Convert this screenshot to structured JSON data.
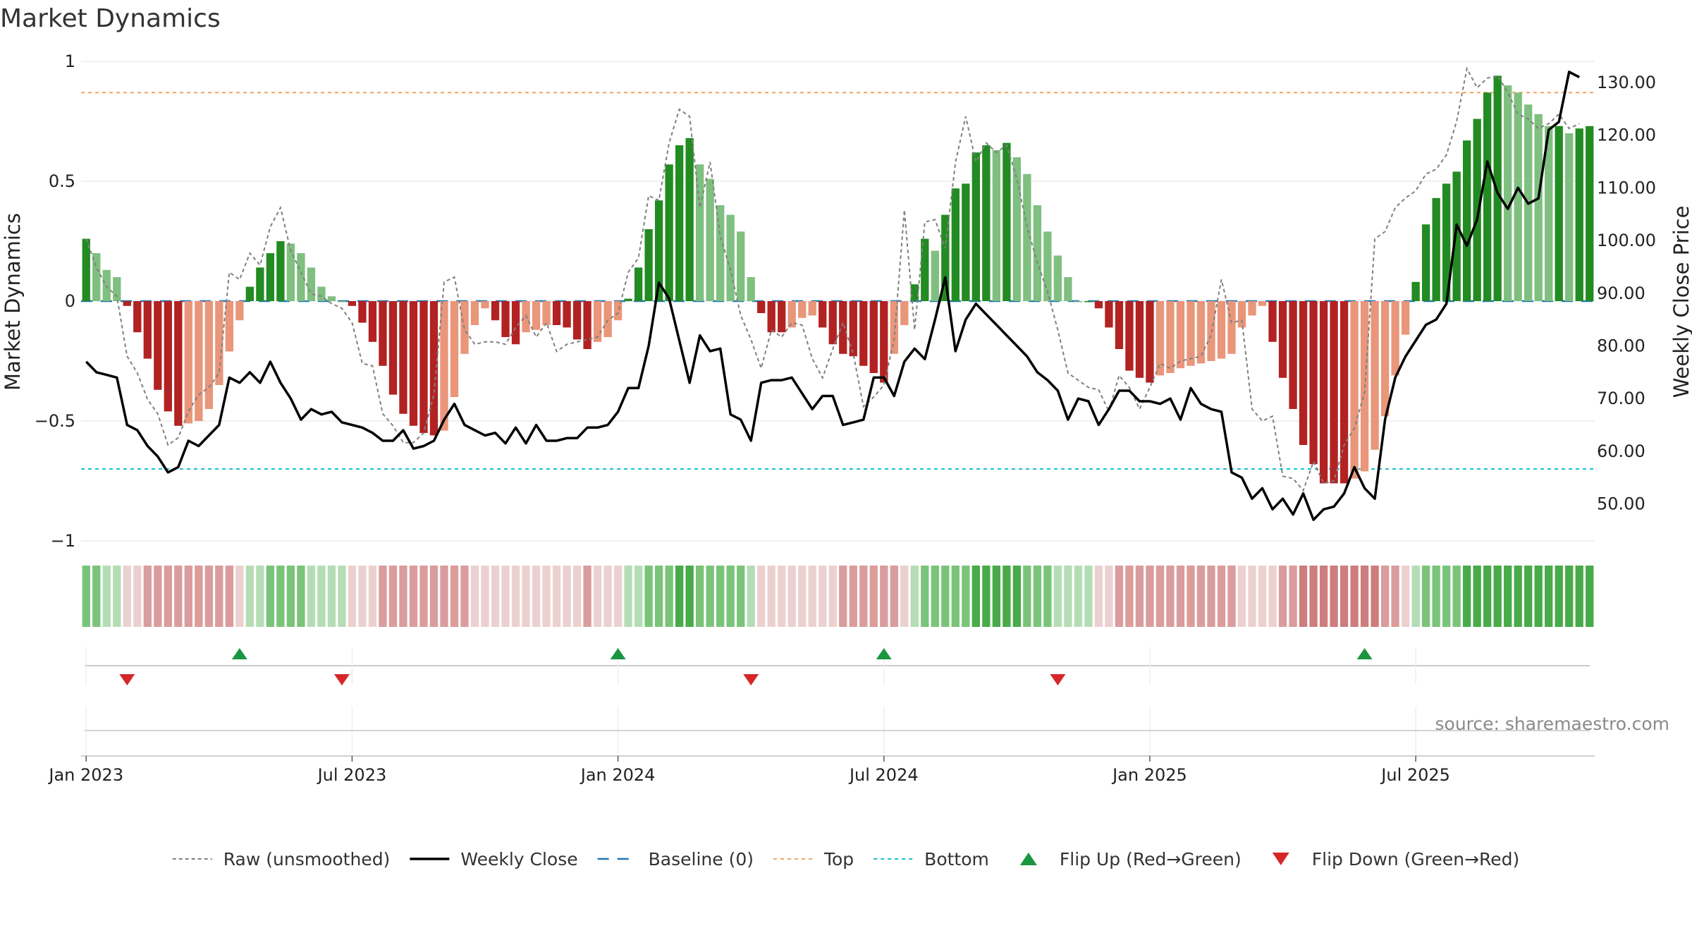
{
  "chart_data": {
    "type": "bar",
    "title": "Market Dynamics",
    "ylabel": "Market Dynamics",
    "y2label": "Weekly Close Price",
    "source": "source: sharemaestro.com",
    "ylim": [
      -1,
      1
    ],
    "y2lim": [
      43,
      134
    ],
    "y_ticks": [
      {
        "v": 1,
        "label": "1"
      },
      {
        "v": 0.5,
        "label": "0.5"
      },
      {
        "v": 0,
        "label": "0"
      },
      {
        "v": -0.5,
        "label": "−0.5"
      },
      {
        "v": -1,
        "label": "−1"
      }
    ],
    "y2_ticks": [
      {
        "v": 130,
        "label": "130.00"
      },
      {
        "v": 120,
        "label": "120.00"
      },
      {
        "v": 110,
        "label": "110.00"
      },
      {
        "v": 100,
        "label": "100.00"
      },
      {
        "v": 90,
        "label": "90.00"
      },
      {
        "v": 80,
        "label": "80.00"
      },
      {
        "v": 70,
        "label": "70.00"
      },
      {
        "v": 60,
        "label": "60.00"
      },
      {
        "v": 50,
        "label": "50.00"
      }
    ],
    "x_ticks": [
      {
        "week": 1,
        "label": "Jan 2023"
      },
      {
        "week": 27,
        "label": "Jul 2023"
      },
      {
        "week": 53,
        "label": "Jan 2024"
      },
      {
        "week": 79,
        "label": "Jul 2024"
      },
      {
        "week": 105,
        "label": "Jan 2025"
      },
      {
        "week": 131,
        "label": "Jul 2025"
      }
    ],
    "top_line": 0.87,
    "bottom_line": -0.7,
    "baseline": 0,
    "colors": {
      "strong_pos": "#228b22",
      "weak_pos": "#7fbf7f",
      "strong_neg": "#b22222",
      "weak_neg": "#e9967a",
      "raw": "#808080",
      "close": "#000000",
      "baseline": "#1f77b4",
      "top": "#f4a460",
      "bottom": "#17becf",
      "flip_up": "#1a9641",
      "flip_down": "#d62728"
    },
    "series": [
      {
        "name": "Market Dynamics",
        "values": [
          0.26,
          0.2,
          0.13,
          0.1,
          -0.02,
          -0.13,
          -0.24,
          -0.37,
          -0.46,
          -0.52,
          -0.51,
          -0.5,
          -0.45,
          -0.35,
          -0.21,
          -0.08,
          0.06,
          0.14,
          0.2,
          0.25,
          0.24,
          0.2,
          0.14,
          0.06,
          0.02,
          0.0,
          -0.02,
          -0.09,
          -0.17,
          -0.27,
          -0.39,
          -0.47,
          -0.52,
          -0.55,
          -0.56,
          -0.54,
          -0.4,
          -0.22,
          -0.1,
          -0.03,
          -0.08,
          -0.15,
          -0.18,
          -0.13,
          -0.12,
          -0.1,
          -0.1,
          -0.11,
          -0.16,
          -0.2,
          -0.17,
          -0.15,
          -0.08,
          0.01,
          0.14,
          0.3,
          0.42,
          0.57,
          0.65,
          0.68,
          0.57,
          0.51,
          0.4,
          0.36,
          0.29,
          0.1,
          -0.05,
          -0.13,
          -0.13,
          -0.11,
          -0.07,
          -0.06,
          -0.11,
          -0.18,
          -0.22,
          -0.23,
          -0.27,
          -0.3,
          -0.34,
          -0.22,
          -0.1,
          0.07,
          0.26,
          0.21,
          0.36,
          0.47,
          0.49,
          0.62,
          0.65,
          0.63,
          0.66,
          0.6,
          0.53,
          0.4,
          0.29,
          0.19,
          0.1,
          0.0,
          0.0,
          -0.03,
          -0.11,
          -0.2,
          -0.29,
          -0.32,
          -0.34,
          -0.31,
          -0.3,
          -0.28,
          -0.27,
          -0.26,
          -0.25,
          -0.24,
          -0.22,
          -0.11,
          -0.06,
          -0.02,
          -0.17,
          -0.32,
          -0.45,
          -0.6,
          -0.68,
          -0.76,
          -0.76,
          -0.76,
          -0.74,
          -0.71,
          -0.62,
          -0.48,
          -0.31,
          -0.14,
          0.08,
          0.32,
          0.43,
          0.49,
          0.54,
          0.67,
          0.76,
          0.87,
          0.94,
          0.9,
          0.87,
          0.82,
          0.78,
          0.73,
          0.73,
          0.7,
          0.72,
          0.73
        ]
      },
      {
        "name": "Raw (unsmoothed)",
        "values": [
          0.26,
          0.14,
          0.06,
          0.02,
          -0.23,
          -0.3,
          -0.41,
          -0.47,
          -0.6,
          -0.57,
          -0.46,
          -0.39,
          -0.36,
          -0.3,
          0.12,
          0.09,
          0.2,
          0.15,
          0.31,
          0.39,
          0.21,
          0.12,
          0.03,
          0.02,
          -0.01,
          -0.03,
          -0.09,
          -0.26,
          -0.27,
          -0.47,
          -0.52,
          -0.59,
          -0.59,
          -0.55,
          -0.39,
          0.08,
          0.1,
          -0.12,
          -0.18,
          -0.17,
          -0.17,
          -0.18,
          -0.11,
          -0.06,
          -0.15,
          -0.09,
          -0.21,
          -0.18,
          -0.17,
          -0.16,
          -0.15,
          -0.08,
          -0.05,
          0.12,
          0.18,
          0.44,
          0.42,
          0.66,
          0.8,
          0.77,
          0.39,
          0.58,
          0.27,
          0.13,
          -0.06,
          -0.16,
          -0.28,
          -0.12,
          -0.15,
          -0.09,
          -0.1,
          -0.24,
          -0.32,
          -0.2,
          -0.09,
          -0.22,
          -0.44,
          -0.4,
          -0.35,
          -0.16,
          0.38,
          -0.12,
          0.33,
          0.34,
          0.22,
          0.58,
          0.77,
          0.58,
          0.66,
          0.62,
          0.65,
          0.51,
          0.31,
          0.16,
          0.04,
          -0.12,
          -0.3,
          -0.33,
          -0.36,
          -0.37,
          -0.46,
          -0.31,
          -0.36,
          -0.45,
          -0.36,
          -0.26,
          -0.28,
          -0.25,
          -0.24,
          -0.23,
          -0.14,
          0.09,
          -0.09,
          -0.08,
          -0.45,
          -0.5,
          -0.48,
          -0.73,
          -0.74,
          -0.79,
          -0.67,
          -0.76,
          -0.75,
          -0.6,
          -0.53,
          -0.38,
          0.26,
          0.29,
          0.39,
          0.43,
          0.46,
          0.53,
          0.55,
          0.61,
          0.75,
          0.97,
          0.89,
          0.93,
          0.94,
          0.87,
          0.78,
          0.76,
          0.72,
          0.74,
          0.78,
          0.72,
          0.74
        ]
      },
      {
        "name": "Weekly Close",
        "values": [
          77,
          75,
          74.5,
          74,
          65,
          64,
          61,
          59,
          56,
          57,
          62,
          61,
          63,
          65,
          74,
          73,
          75,
          73,
          77,
          73,
          70,
          66,
          68,
          67,
          67.5,
          65.5,
          65,
          64.5,
          63.5,
          62,
          62,
          64,
          60.5,
          61,
          62,
          66,
          69,
          65,
          64,
          63,
          63.5,
          61.5,
          64.5,
          61.5,
          65,
          62,
          62,
          62.5,
          62.5,
          64.5,
          64.5,
          65,
          67.5,
          72,
          72,
          80,
          92,
          89,
          81,
          73,
          82,
          79,
          79.5,
          67,
          66,
          62,
          73,
          73.5,
          73.5,
          74,
          71,
          68,
          70.5,
          70.5,
          65,
          65.5,
          66,
          74,
          74,
          70.5,
          77,
          79.5,
          77.5,
          85,
          93,
          79,
          85,
          88,
          86,
          84,
          82,
          80,
          78,
          75,
          73.5,
          71.5,
          66,
          70,
          69.5,
          65,
          68,
          71.5,
          71.5,
          69.5,
          69.5,
          69,
          70,
          66,
          72,
          69,
          68,
          67.5,
          56,
          55,
          51,
          53,
          49,
          51,
          48,
          52,
          47,
          49,
          49.5,
          52,
          57,
          53,
          51,
          66,
          74,
          78,
          81,
          84,
          85,
          88,
          103,
          99,
          104,
          115,
          109,
          106,
          110,
          107,
          108,
          121,
          122.5,
          132,
          131
        ]
      },
      {
        "name": "Baseline (0)"
      },
      {
        "name": "Top"
      },
      {
        "name": "Bottom"
      },
      {
        "name": "Flip Up (Red→Green)",
        "weeks": [
          16,
          53,
          79,
          126
        ]
      },
      {
        "name": "Flip Down (Green→Red)",
        "weeks": [
          5,
          26,
          66,
          96
        ]
      }
    ]
  }
}
